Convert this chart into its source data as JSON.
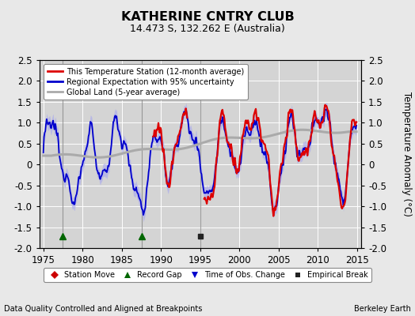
{
  "title": "KATHERINE CNTRY CLUB",
  "subtitle": "14.473 S, 132.262 E (Australia)",
  "ylabel": "Temperature Anomaly (°C)",
  "xlabel_left": "Data Quality Controlled and Aligned at Breakpoints",
  "xlabel_right": "Berkeley Earth",
  "ylim": [
    -2.0,
    2.5
  ],
  "xlim": [
    1974.5,
    2015.5
  ],
  "xticks": [
    1975,
    1980,
    1985,
    1990,
    1995,
    2000,
    2005,
    2010,
    2015
  ],
  "yticks_left": [
    -2.0,
    -1.5,
    -1.0,
    -0.5,
    0.0,
    0.5,
    1.0,
    1.5,
    2.0,
    2.5
  ],
  "yticks_right": [
    -2.0,
    -1.5,
    -1.0,
    -0.5,
    0.0,
    0.5,
    1.0,
    1.5,
    2.0,
    2.5
  ],
  "bg_color": "#e8e8e8",
  "plot_bg_color": "#d4d4d4",
  "grid_color": "#ffffff",
  "station_color": "#dd0000",
  "regional_color": "#0000cc",
  "regional_fill_color": "#aaaaee",
  "global_color": "#aaaaaa",
  "vline_color": "#888888",
  "vlines": [
    1977.5,
    1987.5,
    1995.0
  ],
  "marker_green": "#006600",
  "marker_black": "#222222",
  "marker_red": "#cc0000",
  "marker_blue": "#0000cc"
}
